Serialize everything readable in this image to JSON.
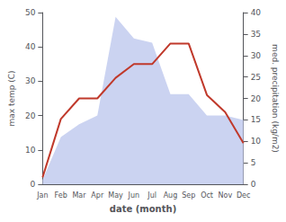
{
  "chart_data": {
    "type": "line",
    "xlabel": "date (month)",
    "ylabel": "max temp (C)",
    "y2label": "med. precipitation (kg/m2)",
    "categories": [
      "Jan",
      "Feb",
      "Mar",
      "Apr",
      "May",
      "Jun",
      "Jul",
      "Aug",
      "Sep",
      "Oct",
      "Nov",
      "Dec"
    ],
    "series": [
      {
        "type": "area",
        "color": "#c5cef0",
        "axis": "y2",
        "values": [
          1,
          11,
          14,
          16,
          39,
          34,
          33,
          21,
          21,
          16,
          16,
          15
        ]
      },
      {
        "type": "line",
        "color": "#c0392b",
        "values": [
          2,
          19,
          25,
          25,
          31,
          35,
          35,
          41,
          41,
          26,
          21,
          12
        ]
      }
    ],
    "ylim": [
      0,
      50
    ],
    "yticks": [
      0,
      10,
      20,
      30,
      40,
      50
    ],
    "y2lim": [
      0,
      40
    ],
    "y2ticks": [
      0,
      5,
      10,
      15,
      20,
      25,
      30,
      35,
      40
    ],
    "grid": false
  }
}
